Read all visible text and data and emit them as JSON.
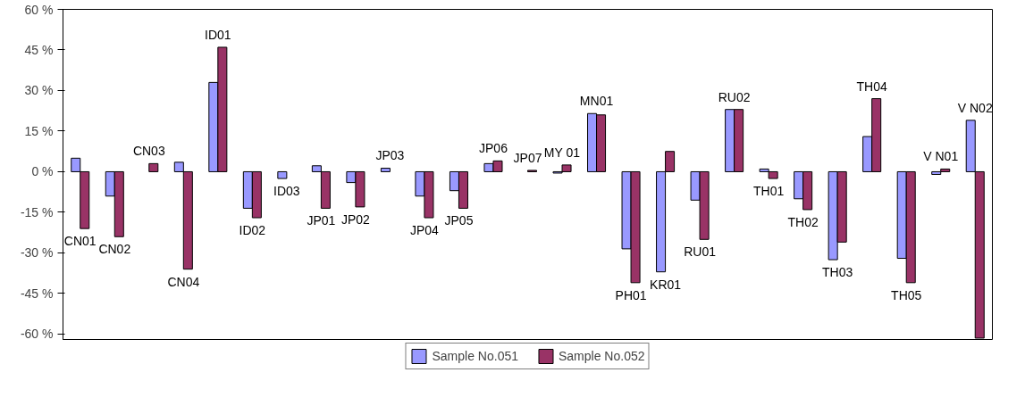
{
  "chart_data": {
    "type": "bar",
    "categories": [
      "CN01",
      "CN02",
      "CN03",
      "CN04",
      "ID01",
      "ID02",
      "ID03",
      "JP01",
      "JP02",
      "JP03",
      "JP04",
      "JP05",
      "JP06",
      "JP07",
      "MY 01",
      "MN01",
      "PH01",
      "KR01",
      "RU01",
      "RU02",
      "TH01",
      "TH02",
      "TH03",
      "TH04",
      "TH05",
      "V N01",
      "V N02"
    ],
    "series": [
      {
        "name": "Sample No.051",
        "color": "#9999ff",
        "values": [
          5,
          -9,
          null,
          3.5,
          33,
          -13.5,
          -2.5,
          2.2,
          -4,
          1.3,
          -9,
          -7,
          3,
          null,
          -0.5,
          21.5,
          -28.5,
          -37,
          -10.5,
          23,
          1,
          -10,
          -32.5,
          13,
          -32,
          -1,
          19
        ]
      },
      {
        "name": "Sample No.052",
        "color": "#993366",
        "values": [
          -21,
          -24,
          3,
          -36,
          46,
          -17,
          null,
          -13.5,
          -13,
          null,
          -17,
          -13.5,
          4,
          0.5,
          2.5,
          21,
          -41,
          7.5,
          -25,
          23,
          -2.5,
          -14,
          -26,
          27,
          -41,
          1,
          -61.5
        ]
      }
    ],
    "ylim": [
      -62,
      60
    ],
    "yticks": [
      {
        "value": -60,
        "label": "-60 %"
      },
      {
        "value": -45,
        "label": "-45 %"
      },
      {
        "value": -30,
        "label": "-30 %"
      },
      {
        "value": -15,
        "label": "-15 %"
      },
      {
        "value": 0,
        "label": "0 %"
      },
      {
        "value": 15,
        "label": "15 %"
      },
      {
        "value": 30,
        "label": "30 %"
      },
      {
        "value": 45,
        "label": "45 %"
      },
      {
        "value": 60,
        "label": "60 %"
      }
    ],
    "legend": "bottom",
    "grid": false
  }
}
